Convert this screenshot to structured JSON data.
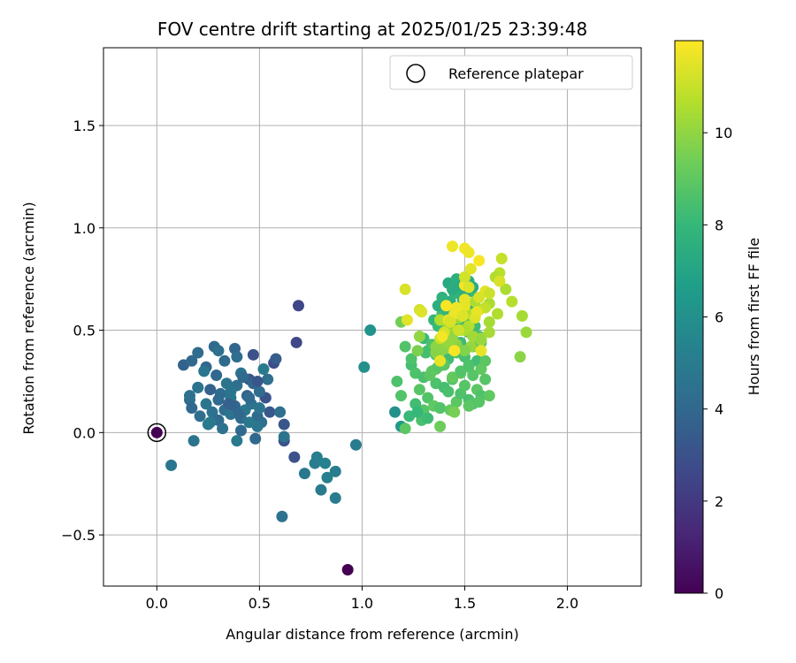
{
  "chart_data": {
    "type": "scatter",
    "title": "FOV centre drift starting at 2025/01/25 23:39:48",
    "xlabel": "Angular distance from reference (arcmin)",
    "ylabel": "Rotation from reference (arcmin)",
    "xlim": [
      -0.26,
      2.36
    ],
    "ylim": [
      -0.75,
      1.88
    ],
    "xticks": [
      0.0,
      0.5,
      1.0,
      1.5,
      2.0
    ],
    "xtick_labels": [
      "0.0",
      "0.5",
      "1.0",
      "1.5",
      "2.0"
    ],
    "yticks": [
      -0.5,
      0.0,
      0.5,
      1.0,
      1.5
    ],
    "ytick_labels": [
      "−0.5",
      "0.0",
      "0.5",
      "1.0",
      "1.5"
    ],
    "grid": true,
    "legend": {
      "position": "top-right",
      "entries": [
        "Reference platepar"
      ]
    },
    "colorbar": {
      "label": "Hours from first FF file",
      "range": [
        0,
        12
      ],
      "ticks": [
        0,
        2,
        4,
        6,
        8,
        10
      ],
      "tick_labels": [
        "0",
        "2",
        "4",
        "6",
        "8",
        "10"
      ],
      "colormap": "viridis"
    },
    "reference_point": {
      "x": 0.0,
      "y": 0.0,
      "hours": 0.0
    },
    "series": [
      {
        "x": [
          0.93,
          0.69,
          0.68,
          0.57,
          0.47,
          0.45,
          0.62,
          0.53,
          0.55,
          0.67,
          0.62,
          0.61,
          0.13,
          0.17,
          0.2,
          0.24,
          0.28,
          0.3,
          0.33,
          0.38,
          0.39,
          0.41,
          0.16,
          0.2,
          0.23,
          0.26,
          0.29,
          0.31,
          0.34,
          0.36,
          0.39,
          0.42,
          0.44,
          0.47,
          0.5,
          0.52,
          0.54,
          0.17,
          0.21,
          0.24,
          0.27,
          0.3,
          0.33,
          0.36,
          0.38,
          0.41,
          0.43,
          0.46,
          0.49,
          0.51,
          0.16,
          0.2,
          0.25,
          0.3,
          0.35,
          0.4,
          0.45,
          0.5,
          0.58,
          0.49,
          0.48,
          0.49,
          0.6,
          0.36,
          0.41,
          0.45,
          0.39,
          0.32,
          0.26,
          0.18,
          0.07,
          0.62,
          0.72,
          0.77,
          0.8,
          0.83,
          0.87,
          0.78,
          0.82,
          0.87,
          0.97,
          1.01,
          1.04,
          1.16,
          1.19
        ],
        "y": [
          -0.67,
          0.62,
          0.44,
          0.34,
          0.38,
          0.26,
          0.04,
          0.17,
          0.1,
          -0.12,
          -0.04,
          -0.41,
          0.33,
          0.35,
          0.39,
          0.32,
          0.42,
          0.4,
          0.35,
          0.41,
          0.37,
          0.29,
          0.16,
          0.22,
          0.3,
          0.21,
          0.28,
          0.19,
          0.24,
          0.17,
          0.23,
          0.27,
          0.18,
          0.24,
          0.2,
          0.31,
          0.26,
          0.12,
          0.08,
          0.14,
          0.1,
          0.16,
          0.11,
          0.09,
          0.13,
          0.07,
          0.11,
          0.14,
          0.08,
          0.05,
          0.18,
          0.22,
          0.04,
          0.06,
          0.14,
          0.09,
          0.17,
          0.12,
          0.36,
          0.25,
          -0.03,
          0.03,
          0.1,
          0.2,
          0.01,
          0.05,
          -0.04,
          0.02,
          0.05,
          -0.04,
          -0.16,
          -0.02,
          -0.2,
          -0.15,
          -0.28,
          -0.22,
          -0.32,
          -0.12,
          -0.15,
          -0.19,
          -0.06,
          0.32,
          0.5,
          0.1,
          0.03
        ],
        "hours": [
          0.0,
          2.5,
          2.6,
          2.8,
          3.0,
          3.1,
          3.2,
          3.1,
          3.3,
          3.0,
          3.0,
          4.5,
          3.8,
          4.0,
          4.2,
          3.9,
          4.1,
          4.4,
          4.1,
          3.9,
          4.3,
          4.6,
          4.3,
          4.5,
          4.7,
          3.8,
          4.0,
          4.2,
          4.6,
          4.8,
          4.4,
          4.1,
          3.7,
          3.9,
          4.2,
          4.9,
          4.4,
          4.0,
          4.3,
          4.7,
          4.5,
          4.1,
          4.3,
          4.6,
          3.9,
          4.2,
          4.8,
          4.5,
          4.1,
          4.3,
          4.4,
          4.6,
          4.9,
          4.2,
          3.7,
          4.0,
          4.1,
          4.7,
          3.5,
          3.2,
          4.0,
          4.7,
          4.4,
          4.6,
          4.1,
          4.8,
          4.9,
          4.5,
          4.9,
          4.6,
          4.7,
          4.6,
          4.8,
          5.0,
          4.9,
          5.2,
          5.0,
          5.1,
          5.3,
          5.1,
          5.0,
          6.0,
          6.2,
          6.0,
          6.4
        ]
      },
      {
        "x": [
          1.17,
          1.19,
          1.21,
          1.24,
          1.26,
          1.28,
          1.3,
          1.32,
          1.34,
          1.36,
          1.38,
          1.4,
          1.42,
          1.44,
          1.46,
          1.48,
          1.5,
          1.52,
          1.54,
          1.56,
          1.58,
          1.6,
          1.3,
          1.32,
          1.34,
          1.36,
          1.38,
          1.4,
          1.42,
          1.44,
          1.46,
          1.48,
          1.5,
          1.52,
          1.54,
          1.56,
          1.58,
          1.35,
          1.37,
          1.39,
          1.41,
          1.43,
          1.45,
          1.47,
          1.49,
          1.51,
          1.53,
          1.55,
          1.57,
          1.37,
          1.39,
          1.41,
          1.43,
          1.45,
          1.47,
          1.49,
          1.51,
          1.53,
          1.55,
          1.42,
          1.44,
          1.46,
          1.48,
          1.5,
          1.52,
          1.54,
          1.33,
          1.36,
          1.4,
          1.44,
          1.48,
          1.52,
          1.3,
          1.35,
          1.38,
          1.43,
          1.52,
          1.57,
          1.62,
          1.23,
          1.26,
          1.29,
          1.32,
          1.27,
          1.24,
          1.21,
          1.31,
          1.37,
          1.39,
          1.48,
          1.52,
          1.54,
          1.58,
          1.6,
          1.38,
          1.45
        ],
        "y": [
          0.25,
          0.18,
          0.02,
          0.33,
          0.29,
          0.21,
          0.27,
          0.17,
          0.3,
          0.24,
          0.12,
          0.22,
          0.2,
          0.26,
          0.15,
          0.19,
          0.23,
          0.16,
          0.14,
          0.21,
          0.18,
          0.26,
          0.46,
          0.4,
          0.43,
          0.38,
          0.45,
          0.41,
          0.36,
          0.47,
          0.39,
          0.44,
          0.37,
          0.49,
          0.42,
          0.35,
          0.44,
          0.55,
          0.52,
          0.58,
          0.53,
          0.49,
          0.56,
          0.51,
          0.54,
          0.5,
          0.57,
          0.52,
          0.47,
          0.62,
          0.66,
          0.6,
          0.64,
          0.68,
          0.61,
          0.65,
          0.63,
          0.69,
          0.62,
          0.73,
          0.7,
          0.75,
          0.72,
          0.68,
          0.74,
          0.71,
          0.28,
          0.31,
          0.33,
          0.27,
          0.29,
          0.32,
          0.11,
          0.13,
          0.12,
          0.11,
          0.13,
          0.15,
          0.18,
          0.08,
          0.14,
          0.06,
          0.07,
          0.1,
          0.36,
          0.42,
          0.39,
          0.32,
          0.34,
          0.3,
          0.33,
          0.28,
          0.31,
          0.35,
          0.03,
          0.1
        ],
        "hours": [
          8.6,
          8.7,
          8.9,
          8.4,
          8.6,
          8.8,
          8.5,
          8.7,
          8.9,
          8.6,
          8.8,
          8.4,
          8.5,
          8.7,
          8.9,
          8.6,
          8.8,
          8.5,
          8.7,
          8.9,
          8.6,
          8.8,
          8.1,
          8.3,
          8.5,
          8.2,
          8.4,
          8.6,
          8.3,
          8.5,
          8.7,
          8.2,
          8.4,
          8.6,
          8.8,
          8.3,
          8.5,
          7.9,
          8.1,
          8.3,
          8.0,
          8.2,
          8.4,
          8.1,
          8.3,
          8.5,
          8.0,
          8.2,
          8.4,
          7.5,
          7.7,
          7.9,
          7.6,
          7.8,
          8.0,
          7.7,
          7.9,
          8.1,
          7.6,
          7.2,
          7.4,
          7.6,
          7.3,
          7.5,
          7.7,
          7.4,
          8.9,
          9.0,
          8.8,
          9.1,
          9.0,
          8.9,
          8.8,
          9.0,
          8.7,
          9.1,
          8.9,
          8.8,
          9.0,
          8.1,
          8.3,
          8.5,
          8.2,
          8.0,
          8.6,
          8.7,
          8.4,
          8.8,
          8.9,
          8.7,
          8.6,
          8.8,
          9.0,
          8.9,
          9.3,
          9.5
        ]
      },
      {
        "x": [
          1.19,
          1.27,
          1.36,
          1.38,
          1.46,
          1.53,
          1.58,
          1.62,
          1.66,
          1.7,
          1.78,
          1.8,
          1.73,
          1.77,
          1.67,
          1.65,
          1.62,
          1.55,
          1.48,
          1.44,
          1.4,
          1.36,
          1.42,
          1.46,
          1.52,
          1.57,
          1.6,
          1.55,
          1.5,
          1.47,
          1.44,
          1.4,
          1.37,
          1.5,
          1.54,
          1.58,
          1.38,
          1.46,
          1.52,
          1.28,
          1.42,
          1.5,
          1.62
        ],
        "y": [
          0.54,
          0.4,
          0.39,
          0.44,
          0.43,
          0.42,
          0.46,
          0.49,
          0.58,
          0.7,
          0.57,
          0.49,
          0.64,
          0.37,
          0.78,
          0.76,
          0.63,
          0.58,
          0.5,
          0.48,
          0.47,
          0.42,
          0.52,
          0.56,
          0.52,
          0.6,
          0.61,
          0.64,
          0.65,
          0.56,
          0.46,
          0.41,
          0.38,
          0.5,
          0.47,
          0.45,
          0.55,
          0.61,
          0.58,
          0.47,
          0.44,
          0.4,
          0.54
        ],
        "hours": [
          9.4,
          9.6,
          9.8,
          9.5,
          9.9,
          10.1,
          10.3,
          10.4,
          10.6,
          10.5,
          10.4,
          10.2,
          10.7,
          9.9,
          10.8,
          10.6,
          10.5,
          10.3,
          10.2,
          10.1,
          10.0,
          9.9,
          10.3,
          10.6,
          10.7,
          10.8,
          10.9,
          10.5,
          10.4,
          10.2,
          10.0,
          9.9,
          9.8,
          10.5,
          10.3,
          10.1,
          10.6,
          10.9,
          10.6,
          10.0,
          10.1,
          9.7,
          10.4
        ]
      },
      {
        "x": [
          1.21,
          1.22,
          1.28,
          1.29,
          1.38,
          1.42,
          1.45,
          1.5,
          1.5,
          1.52,
          1.55,
          1.57,
          1.6,
          1.67,
          1.68,
          1.56,
          1.5,
          1.46,
          1.43,
          1.47,
          1.4,
          1.38,
          1.45,
          1.5,
          1.52,
          1.44,
          1.5,
          1.53,
          1.57,
          1.62,
          1.58,
          1.39,
          1.41,
          1.49
        ],
        "y": [
          0.7,
          0.55,
          0.6,
          0.59,
          0.35,
          0.55,
          0.58,
          0.62,
          0.9,
          0.88,
          0.56,
          0.84,
          0.69,
          0.74,
          0.85,
          0.59,
          0.72,
          0.61,
          0.54,
          0.5,
          0.49,
          0.46,
          0.4,
          0.65,
          0.71,
          0.91,
          0.76,
          0.8,
          0.66,
          0.68,
          0.4,
          0.47,
          0.62,
          0.57
        ],
        "hours": [
          11.3,
          11.5,
          11.2,
          11.4,
          11.6,
          11.5,
          11.7,
          11.6,
          11.8,
          11.7,
          11.4,
          11.9,
          11.5,
          11.3,
          11.0,
          11.6,
          11.8,
          11.7,
          11.3,
          11.1,
          11.2,
          11.0,
          11.9,
          11.6,
          11.4,
          11.7,
          11.2,
          11.5,
          11.3,
          11.1,
          11.6,
          11.8,
          11.9,
          11.4
        ]
      }
    ]
  }
}
